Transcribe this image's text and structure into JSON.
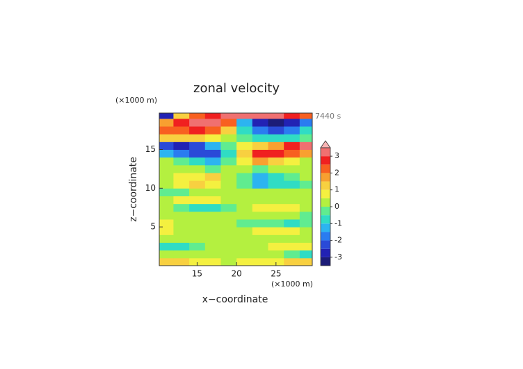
{
  "chart_data": {
    "type": "contour",
    "title": "zonal velocity",
    "xlabel": "x−coordinate",
    "ylabel": "z−coordinate",
    "x_unit": "(×1000 m)",
    "y_unit": "(×1000 m)",
    "time_label": "7440 s",
    "xlim": [
      10.2,
      29.6
    ],
    "ylim": [
      0,
      19.7
    ],
    "xticks": [
      15,
      20,
      25
    ],
    "yticks": [
      5,
      10,
      15
    ],
    "x": [
      11,
      13,
      15,
      17,
      19,
      21,
      23,
      25,
      27,
      29
    ],
    "z": [
      0.5,
      1.5,
      2.5,
      3.5,
      4.5,
      5.5,
      6.5,
      7.5,
      8.5,
      9.5,
      10.5,
      11.5,
      12.5,
      13.5,
      14.5,
      15.5,
      16.5,
      17.5,
      18.5,
      19.5
    ],
    "values": [
      [
        1.2,
        1,
        0.8,
        0.6,
        0.3,
        0.6,
        0.6,
        0.8,
        1.1,
        1.3
      ],
      [
        0.3,
        0.3,
        0.2,
        0.2,
        0.2,
        0.3,
        0.3,
        0.1,
        -0.3,
        -0.6
      ],
      [
        -0.8,
        -0.6,
        -0.3,
        0.2,
        0.2,
        0.2,
        0.4,
        0.7,
        0.9,
        0.6
      ],
      [
        0.2,
        0.3,
        0.3,
        0.2,
        0.1,
        0.2,
        0.4,
        0.3,
        0.2,
        0.3
      ],
      [
        0.7,
        0.4,
        0.3,
        0.4,
        0.3,
        0.3,
        0.6,
        0.7,
        0.7,
        0.4
      ],
      [
        0.6,
        0.4,
        0.2,
        0.2,
        0.3,
        -0.2,
        -0.4,
        -0.3,
        -0.6,
        -0.3
      ],
      [
        0.2,
        0.2,
        0.1,
        0.1,
        0.2,
        0.2,
        0.3,
        0.2,
        0.1,
        -0.2
      ],
      [
        0.2,
        -0.3,
        -1,
        -1,
        -0.3,
        0.3,
        0.8,
        0.9,
        0.6,
        0.3
      ],
      [
        0.3,
        0.6,
        0.8,
        0.6,
        0.3,
        0.2,
        0.3,
        0.2,
        0.1,
        0.1
      ],
      [
        -0.3,
        -0.2,
        0.2,
        0.3,
        0.2,
        0.2,
        0.3,
        0.2,
        0.2,
        0.3
      ],
      [
        0.3,
        0.8,
        1,
        0.8,
        0.3,
        -0.5,
        -1.2,
        -1,
        -0.6,
        -0.2
      ],
      [
        0.3,
        0.6,
        0.8,
        1,
        0.3,
        -0.5,
        -1.2,
        -0.8,
        -0.3,
        0.2
      ],
      [
        0.3,
        0.3,
        0.2,
        -0.3,
        0.2,
        0.2,
        -0.3,
        0.2,
        0.3,
        0.3
      ],
      [
        0.3,
        -0.3,
        -0.8,
        -1.2,
        -0.3,
        0.8,
        1.5,
        1,
        0.5,
        0.3
      ],
      [
        -1.5,
        -2,
        -2.5,
        -2.5,
        -1,
        1,
        2.5,
        2.5,
        2,
        1.5
      ],
      [
        -2.5,
        -3,
        -2.5,
        -1.5,
        -0.5,
        0.5,
        1,
        1.5,
        2.5,
        3
      ],
      [
        1,
        1,
        1,
        0.5,
        0,
        -0.5,
        -1,
        -1,
        -1,
        -0.5
      ],
      [
        2,
        2,
        2.5,
        2,
        1,
        -1,
        -2,
        -2.5,
        -2,
        -1
      ],
      [
        1.5,
        2.5,
        3,
        3,
        2,
        -1.5,
        -3,
        -3.2,
        -3,
        -2
      ],
      [
        -3,
        1,
        2,
        2.5,
        3,
        3.2,
        3.2,
        3.2,
        2.5,
        2
      ]
    ],
    "levels": [
      -3.5,
      -3,
      -2.5,
      -2,
      -1.5,
      -1,
      -0.5,
      0,
      0.5,
      1,
      1.5,
      2,
      2.5,
      3,
      3.5
    ],
    "colors": [
      "#1c1c78",
      "#2222b4",
      "#2a4ad8",
      "#2a7cf0",
      "#2cb4f0",
      "#30dcc4",
      "#60ec90",
      "#b4f040",
      "#f4f040",
      "#f8d040",
      "#f8a030",
      "#f86020",
      "#f02020",
      "#f07070"
    ],
    "extend_color": "#f8b4b4",
    "cbticks": [
      -3,
      -2,
      -1,
      0,
      1,
      2,
      3
    ]
  }
}
